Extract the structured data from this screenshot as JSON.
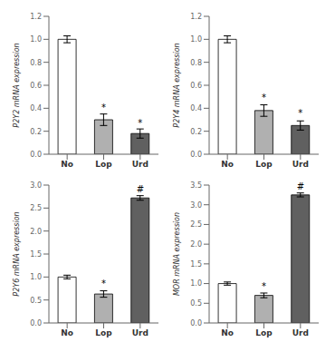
{
  "chart_data": [
    {
      "type": "bar",
      "ylabel": "P2Y2 mRNA expression",
      "categories": [
        "No",
        "Lop",
        "Urd"
      ],
      "values": [
        1.0,
        0.3,
        0.18
      ],
      "errors": [
        0.03,
        0.05,
        0.04
      ],
      "colors": [
        "#FFFFFF",
        "#B0B0B0",
        "#606060"
      ],
      "ylim": [
        0,
        1.2
      ],
      "yticks": [
        {
          "value": 0,
          "label": "0.0"
        },
        0.2,
        0.4,
        0.6,
        0.8,
        {
          "value": 1,
          "label": "1.0"
        },
        1.2
      ],
      "grid": false,
      "annotations": [
        {
          "text": "*",
          "x": "Lop",
          "y": 0.37
        },
        {
          "text": "*",
          "x": "Urd",
          "y": 0.24
        }
      ]
    },
    {
      "type": "bar",
      "ylabel": "P2Y4 mRNA expression",
      "categories": [
        "No",
        "Lop",
        "Urd"
      ],
      "values": [
        1.0,
        0.38,
        0.25
      ],
      "errors": [
        0.03,
        0.05,
        0.04
      ],
      "colors": [
        "#FFFFFF",
        "#B0B0B0",
        "#606060"
      ],
      "ylim": [
        0,
        1.2
      ],
      "yticks": [
        {
          "value": 0,
          "label": "0.0"
        },
        0.2,
        0.4,
        0.6,
        0.8,
        {
          "value": 1,
          "label": "1.0"
        },
        1.2
      ],
      "grid": false,
      "annotations": [
        {
          "text": "*",
          "x": "Lop",
          "y": 0.46
        },
        {
          "text": "*",
          "x": "Urd",
          "y": 0.32
        }
      ]
    },
    {
      "type": "bar",
      "ylabel": "P2Y6 mRNA expression",
      "categories": [
        "No",
        "Lop",
        "Urd"
      ],
      "values": [
        1.0,
        0.63,
        2.72
      ],
      "errors": [
        0.04,
        0.07,
        0.05
      ],
      "colors": [
        "#FFFFFF",
        "#B0B0B0",
        "#606060"
      ],
      "ylim": [
        0,
        3.0
      ],
      "yticks": [
        {
          "value": 0,
          "label": "0.0"
        },
        0.5,
        {
          "value": 1,
          "label": "1.0"
        },
        1.5,
        {
          "value": 2,
          "label": "2.0"
        },
        2.5,
        {
          "value": 3,
          "label": "3.0"
        }
      ],
      "grid": false,
      "annotations": [
        {
          "text": "*",
          "x": "Lop",
          "y": 0.76
        },
        {
          "text": "#",
          "x": "Urd",
          "y": 2.83
        }
      ]
    },
    {
      "type": "bar",
      "ylabel": "MOR  mRNA expression",
      "categories": [
        "No",
        "Lop",
        "Urd"
      ],
      "values": [
        1.0,
        0.7,
        3.25
      ],
      "errors": [
        0.04,
        0.06,
        0.05
      ],
      "colors": [
        "#FFFFFF",
        "#B0B0B0",
        "#606060"
      ],
      "ylim": [
        0,
        3.5
      ],
      "yticks": [
        {
          "value": 0,
          "label": "0.0"
        },
        0.5,
        {
          "value": 1,
          "label": "1.0"
        },
        1.5,
        {
          "value": 2,
          "label": "2.0"
        },
        2.5,
        {
          "value": 3,
          "label": "3.0"
        },
        3.5
      ],
      "grid": false,
      "annotations": [
        {
          "text": "*",
          "x": "Lop",
          "y": 0.83
        },
        {
          "text": "#",
          "x": "Urd",
          "y": 3.36
        }
      ]
    }
  ]
}
